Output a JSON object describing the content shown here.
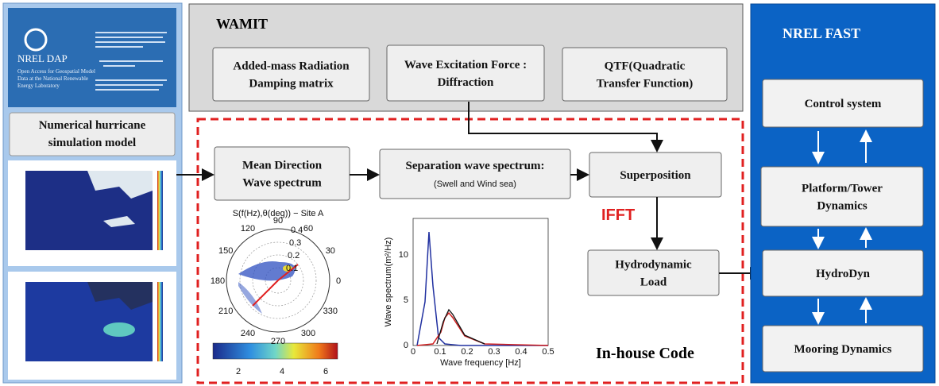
{
  "nrel_dap": {
    "title": "NREL DAP",
    "subtitle": [
      "Open Access for Geospatial Model",
      "Data at the National Renewable",
      "Energy Laboratory"
    ]
  },
  "left": {
    "model_box": [
      "Numerical hurricane",
      "simulation model"
    ]
  },
  "wamit": {
    "title": "WAMIT",
    "boxes": [
      [
        "Added-mass Radiation",
        "Damping matrix"
      ],
      [
        "Wave Excitation Force :",
        "Diffraction"
      ],
      [
        "QTF(Quadratic",
        "Transfer Function)"
      ]
    ]
  },
  "inhouse": {
    "label": "In-house Code",
    "ifft": "IFFT",
    "boxes": [
      [
        "Mean Direction",
        "Wave spectrum"
      ],
      [
        "Separation wave spectrum:",
        "(Swell and Wind sea)"
      ],
      [
        "Superposition"
      ],
      [
        "Hydrodynamic",
        "Load"
      ]
    ]
  },
  "polar": {
    "title": "S(f(Hz),θ(deg)) − Site A",
    "angle_labels": [
      "0",
      "30",
      "60",
      "90",
      "120",
      "150",
      "180",
      "210",
      "240",
      "270",
      "300",
      "330"
    ],
    "radial_labels": [
      "0.1",
      "0.2",
      "0.3",
      "0.4"
    ],
    "colorbar_ticks": [
      "2",
      "4",
      "6"
    ]
  },
  "spectrum": {
    "y_label": "Wave spectrum(m²/Hz)",
    "x_label": "Wave frequency [Hz]",
    "yticks": [
      "0",
      "5",
      "10"
    ],
    "xticks": [
      "0",
      "0.1",
      "0.2",
      "0.3",
      "0.4",
      "0.5"
    ]
  },
  "fast": {
    "title": "NREL FAST",
    "boxes": [
      [
        "Control system"
      ],
      [
        "Platform/Tower",
        "Dynamics"
      ],
      [
        "HydroDyn"
      ],
      [
        "Mooring Dynamics"
      ]
    ]
  }
}
